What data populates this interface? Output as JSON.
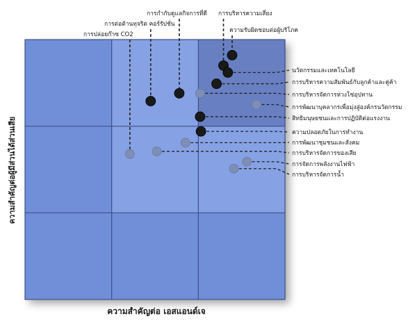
{
  "chart_data": {
    "type": "scatter",
    "title": "",
    "xlabel": "ความสำคัญต่อ เอสแอนด์เจ",
    "ylabel": "ความสำคัญต่อผู้มีส่วนได้ส่วนเสีย",
    "xlim": [
      0,
      3
    ],
    "ylim": [
      0,
      3
    ],
    "grid": "3x3",
    "colors": {
      "quadrant_light": "#6f8fd8",
      "quadrant_mid": "#86a2e4",
      "quadrant_top": "#6e86c8",
      "dot_dark": "#1a1a1a",
      "dot_grey": "#7d8fb7",
      "leader": "#222222"
    },
    "points": [
      {
        "label": "การบริหารความเสี่ยง",
        "x": 2.29,
        "y": 2.7,
        "style": "dark",
        "label_side": "top"
      },
      {
        "label": "ความรับผิดชอบต่อผู้บริโภค",
        "x": 2.39,
        "y": 2.82,
        "style": "dark",
        "label_side": "top"
      },
      {
        "label": "การกำกับดูแลกิจการที่ดี",
        "x": 1.78,
        "y": 2.38,
        "style": "dark",
        "label_side": "top"
      },
      {
        "label": "การต่อต้านทุจริต คอร์รัปชั่น",
        "x": 1.45,
        "y": 2.29,
        "style": "dark",
        "label_side": "top"
      },
      {
        "label": "การปล่อยก๊าซ CO2",
        "x": 1.21,
        "y": 1.68,
        "style": "grey",
        "label_side": "top"
      },
      {
        "label": "นวัตกรรมและเทคโนโลยี",
        "x": 2.34,
        "y": 2.62,
        "style": "dark",
        "label_side": "right"
      },
      {
        "label": "การบริหารความสัมพันธ์กับลูกค้าและคู่ค้า",
        "x": 2.21,
        "y": 2.49,
        "style": "dark",
        "label_side": "right"
      },
      {
        "label": "การบริหารจัดการห่วงโซ่อุปทาน",
        "x": 2.02,
        "y": 2.38,
        "style": "grey",
        "label_side": "right"
      },
      {
        "label": "การพัฒนาบุคลากรเพื่อมุ่งสู่องค์กรนวัตกรรม",
        "x": 2.67,
        "y": 2.25,
        "style": "grey",
        "label_side": "right"
      },
      {
        "label": "สิทธิมนุษยชนและการปฏิบัติต่อแรงงาน",
        "x": 2.02,
        "y": 2.11,
        "style": "dark",
        "label_side": "right"
      },
      {
        "label": "ความปลอดภัยในการทำงาน",
        "x": 2.03,
        "y": 1.94,
        "style": "dark",
        "label_side": "right"
      },
      {
        "label": "การพัฒนาชุมชนและสังคม",
        "x": 1.85,
        "y": 1.81,
        "style": "grey",
        "label_side": "right"
      },
      {
        "label": "การบริหารจัดการของเสีย",
        "x": 1.52,
        "y": 1.71,
        "style": "grey",
        "label_side": "right"
      },
      {
        "label": "การจัดการพลังงานไฟฟ้า",
        "x": 2.56,
        "y": 1.59,
        "style": "grey",
        "label_side": "right"
      },
      {
        "label": "การบริหารจัดการน้ำ",
        "x": 2.41,
        "y": 1.51,
        "style": "grey",
        "label_side": "right"
      }
    ]
  }
}
